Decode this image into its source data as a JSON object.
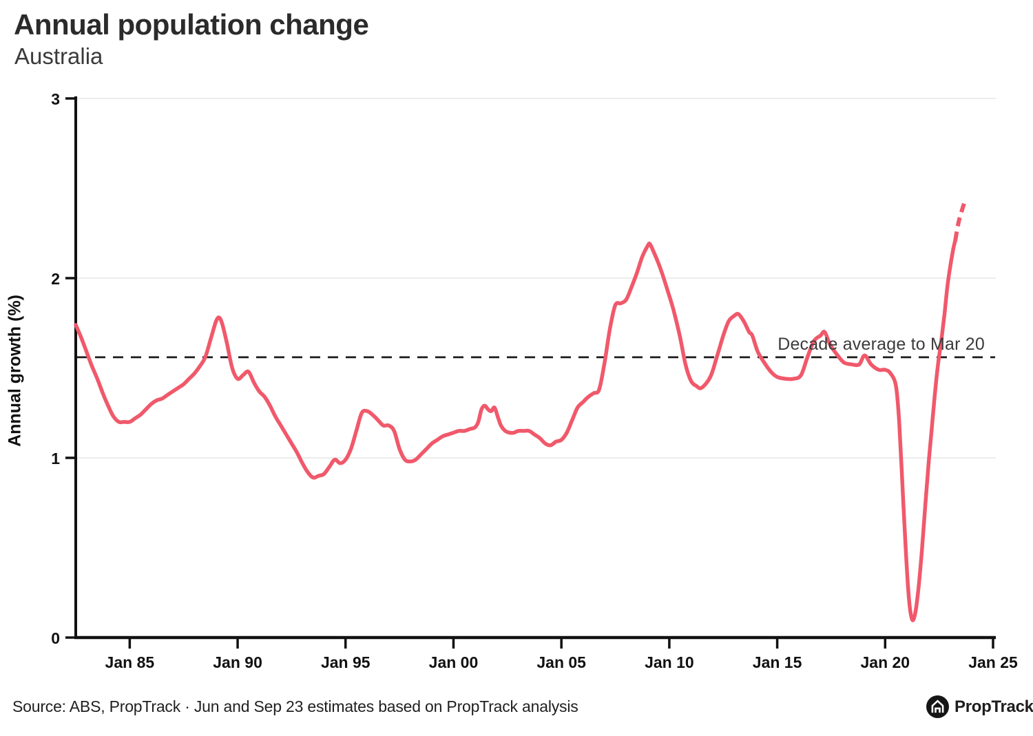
{
  "header": {
    "title": "Annual population change",
    "subtitle": "Australia"
  },
  "chart_data": {
    "type": "line",
    "title": "Annual population change",
    "subtitle": "Australia",
    "ylabel": "Annual growth (%)",
    "xlabel": "",
    "ylim": [
      0,
      3
    ],
    "xlim": [
      1982.5,
      2025
    ],
    "grid": "horizontal",
    "gridlines_y": [
      1,
      2,
      3
    ],
    "line_color": "#f0596b",
    "axis_color": "#111111",
    "gridline_color": "#ececec",
    "y_ticks": [
      {
        "label": "0",
        "value": 0
      },
      {
        "label": "1",
        "value": 1
      },
      {
        "label": "2",
        "value": 2
      },
      {
        "label": "3",
        "value": 3
      }
    ],
    "x_ticks": [
      {
        "label": "Jan 85",
        "year": 1985
      },
      {
        "label": "Jan 90",
        "year": 1990
      },
      {
        "label": "Jan 95",
        "year": 1995
      },
      {
        "label": "Jan 00",
        "year": 2000
      },
      {
        "label": "Jan 05",
        "year": 2005
      },
      {
        "label": "Jan 10",
        "year": 2010
      },
      {
        "label": "Jan 15",
        "year": 2015
      },
      {
        "label": "Jan 20",
        "year": 2020
      },
      {
        "label": "Jan 25",
        "year": 2025
      }
    ],
    "reference_line": {
      "value": 1.56,
      "label": "Decade average to Mar 20",
      "style": "dashed",
      "color": "#1a1a1a"
    },
    "series": [
      {
        "name": "Annual growth",
        "style": "solid",
        "points": [
          [
            1982.5,
            1.74
          ],
          [
            1982.75,
            1.67
          ],
          [
            1983,
            1.59
          ],
          [
            1983.25,
            1.51
          ],
          [
            1983.5,
            1.44
          ],
          [
            1983.75,
            1.36
          ],
          [
            1984,
            1.29
          ],
          [
            1984.25,
            1.23
          ],
          [
            1984.5,
            1.2
          ],
          [
            1984.75,
            1.2
          ],
          [
            1985,
            1.2
          ],
          [
            1985.25,
            1.22
          ],
          [
            1985.5,
            1.24
          ],
          [
            1985.75,
            1.27
          ],
          [
            1986,
            1.3
          ],
          [
            1986.25,
            1.32
          ],
          [
            1986.5,
            1.33
          ],
          [
            1986.75,
            1.35
          ],
          [
            1987,
            1.37
          ],
          [
            1987.25,
            1.39
          ],
          [
            1987.5,
            1.41
          ],
          [
            1987.75,
            1.44
          ],
          [
            1988,
            1.47
          ],
          [
            1988.25,
            1.51
          ],
          [
            1988.5,
            1.56
          ],
          [
            1988.75,
            1.66
          ],
          [
            1989,
            1.76
          ],
          [
            1989.15,
            1.78
          ],
          [
            1989.3,
            1.74
          ],
          [
            1989.5,
            1.64
          ],
          [
            1989.75,
            1.5
          ],
          [
            1990,
            1.44
          ],
          [
            1990.25,
            1.46
          ],
          [
            1990.5,
            1.48
          ],
          [
            1990.75,
            1.42
          ],
          [
            1991,
            1.37
          ],
          [
            1991.25,
            1.34
          ],
          [
            1991.5,
            1.29
          ],
          [
            1991.75,
            1.23
          ],
          [
            1992,
            1.18
          ],
          [
            1992.25,
            1.13
          ],
          [
            1992.5,
            1.08
          ],
          [
            1992.75,
            1.03
          ],
          [
            1993,
            0.97
          ],
          [
            1993.25,
            0.92
          ],
          [
            1993.5,
            0.89
          ],
          [
            1993.75,
            0.9
          ],
          [
            1994,
            0.91
          ],
          [
            1994.25,
            0.95
          ],
          [
            1994.5,
            0.99
          ],
          [
            1994.75,
            0.97
          ],
          [
            1995,
            0.99
          ],
          [
            1995.25,
            1.05
          ],
          [
            1995.5,
            1.15
          ],
          [
            1995.75,
            1.25
          ],
          [
            1996,
            1.26
          ],
          [
            1996.25,
            1.24
          ],
          [
            1996.5,
            1.21
          ],
          [
            1996.75,
            1.18
          ],
          [
            1997,
            1.18
          ],
          [
            1997.25,
            1.15
          ],
          [
            1997.5,
            1.05
          ],
          [
            1997.75,
            0.99
          ],
          [
            1998,
            0.98
          ],
          [
            1998.25,
            0.99
          ],
          [
            1998.5,
            1.02
          ],
          [
            1998.75,
            1.05
          ],
          [
            1999,
            1.08
          ],
          [
            1999.25,
            1.1
          ],
          [
            1999.5,
            1.12
          ],
          [
            1999.75,
            1.13
          ],
          [
            2000,
            1.14
          ],
          [
            2000.25,
            1.15
          ],
          [
            2000.5,
            1.15
          ],
          [
            2000.75,
            1.16
          ],
          [
            2001,
            1.17
          ],
          [
            2001.15,
            1.2
          ],
          [
            2001.3,
            1.27
          ],
          [
            2001.45,
            1.29
          ],
          [
            2001.6,
            1.27
          ],
          [
            2001.75,
            1.26
          ],
          [
            2001.9,
            1.28
          ],
          [
            2002.05,
            1.23
          ],
          [
            2002.2,
            1.18
          ],
          [
            2002.4,
            1.15
          ],
          [
            2002.6,
            1.14
          ],
          [
            2002.8,
            1.14
          ],
          [
            2003,
            1.15
          ],
          [
            2003.25,
            1.15
          ],
          [
            2003.5,
            1.15
          ],
          [
            2003.75,
            1.13
          ],
          [
            2004,
            1.11
          ],
          [
            2004.25,
            1.08
          ],
          [
            2004.5,
            1.07
          ],
          [
            2004.75,
            1.09
          ],
          [
            2005,
            1.1
          ],
          [
            2005.25,
            1.14
          ],
          [
            2005.5,
            1.21
          ],
          [
            2005.75,
            1.28
          ],
          [
            2006,
            1.31
          ],
          [
            2006.25,
            1.34
          ],
          [
            2006.5,
            1.36
          ],
          [
            2006.75,
            1.38
          ],
          [
            2007,
            1.53
          ],
          [
            2007.25,
            1.72
          ],
          [
            2007.5,
            1.85
          ],
          [
            2007.75,
            1.86
          ],
          [
            2008,
            1.88
          ],
          [
            2008.25,
            1.95
          ],
          [
            2008.5,
            2.03
          ],
          [
            2008.75,
            2.12
          ],
          [
            2009,
            2.18
          ],
          [
            2009.1,
            2.19
          ],
          [
            2009.3,
            2.14
          ],
          [
            2009.6,
            2.05
          ],
          [
            2009.9,
            1.94
          ],
          [
            2010.2,
            1.82
          ],
          [
            2010.5,
            1.67
          ],
          [
            2010.75,
            1.52
          ],
          [
            2011,
            1.43
          ],
          [
            2011.25,
            1.4
          ],
          [
            2011.5,
            1.39
          ],
          [
            2011.9,
            1.45
          ],
          [
            2012.2,
            1.56
          ],
          [
            2012.5,
            1.68
          ],
          [
            2012.75,
            1.76
          ],
          [
            2013,
            1.79
          ],
          [
            2013.2,
            1.8
          ],
          [
            2013.45,
            1.76
          ],
          [
            2013.7,
            1.7
          ],
          [
            2013.85,
            1.68
          ],
          [
            2014.1,
            1.59
          ],
          [
            2014.4,
            1.53
          ],
          [
            2014.7,
            1.48
          ],
          [
            2015,
            1.45
          ],
          [
            2015.4,
            1.44
          ],
          [
            2015.75,
            1.44
          ],
          [
            2016.1,
            1.46
          ],
          [
            2016.4,
            1.56
          ],
          [
            2016.7,
            1.65
          ],
          [
            2017,
            1.68
          ],
          [
            2017.2,
            1.7
          ],
          [
            2017.45,
            1.63
          ],
          [
            2017.8,
            1.57
          ],
          [
            2018.1,
            1.53
          ],
          [
            2018.45,
            1.52
          ],
          [
            2018.8,
            1.52
          ],
          [
            2019.05,
            1.57
          ],
          [
            2019.35,
            1.52
          ],
          [
            2019.7,
            1.49
          ],
          [
            2020,
            1.49
          ],
          [
            2020.25,
            1.47
          ],
          [
            2020.5,
            1.4
          ],
          [
            2020.65,
            1.2
          ],
          [
            2020.8,
            0.85
          ],
          [
            2020.95,
            0.5
          ],
          [
            2021.1,
            0.22
          ],
          [
            2021.25,
            0.1
          ],
          [
            2021.4,
            0.14
          ],
          [
            2021.55,
            0.28
          ],
          [
            2021.7,
            0.48
          ],
          [
            2021.85,
            0.72
          ],
          [
            2022,
            0.95
          ],
          [
            2022.15,
            1.15
          ],
          [
            2022.3,
            1.35
          ],
          [
            2022.45,
            1.52
          ],
          [
            2022.6,
            1.65
          ],
          [
            2022.75,
            1.8
          ],
          [
            2022.9,
            1.97
          ],
          [
            2023.05,
            2.09
          ],
          [
            2023.17,
            2.17
          ],
          [
            2023.25,
            2.21
          ]
        ]
      },
      {
        "name": "Jun and Sep 23 estimates",
        "style": "dashed",
        "points": [
          [
            2023.25,
            2.21
          ],
          [
            2023.42,
            2.32
          ],
          [
            2023.67,
            2.42
          ]
        ]
      }
    ]
  },
  "footer": {
    "source": "Source: ABS, PropTrack · Jun and Sep 23 estimates based on PropTrack analysis",
    "logo_icon": "house-icon",
    "logo_text": "PropTrack"
  }
}
